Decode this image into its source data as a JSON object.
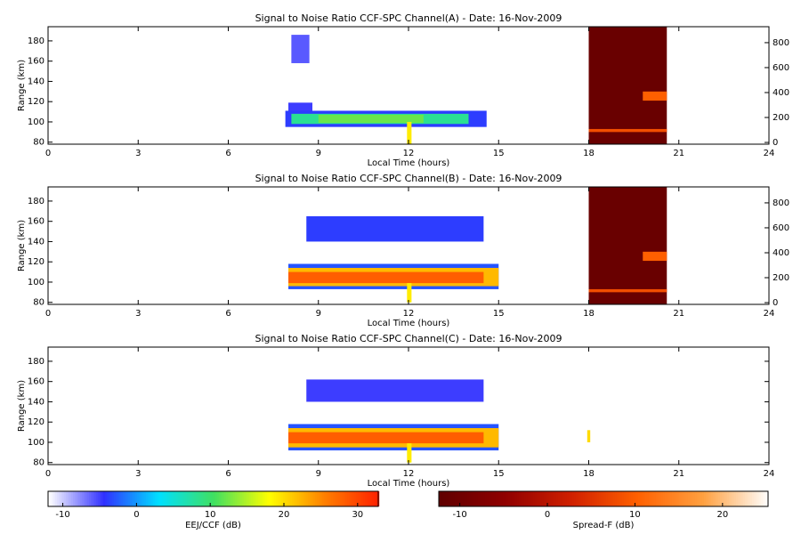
{
  "chart_data": [
    {
      "type": "heatmap",
      "title": "Signal to Noise Ratio CCF-SPC Channel(A) - Date: 16-Nov-2009",
      "x_label": "Local Time (hours)",
      "y_label": "Range (km)",
      "xlim": [
        0,
        24
      ],
      "xticks": [
        0,
        3,
        6,
        9,
        12,
        15,
        18,
        21,
        24
      ],
      "ylim": [
        78,
        194
      ],
      "yticks": [
        80,
        100,
        120,
        140,
        160,
        180
      ],
      "y2lim": [
        -14,
        928
      ],
      "y2ticks": [
        0,
        200,
        400,
        600,
        800
      ],
      "regions": [
        {
          "x": [
            8.1,
            8.7
          ],
          "y": [
            158,
            186
          ],
          "value": -6
        },
        {
          "x": [
            8.0,
            8.8
          ],
          "y": [
            108,
            119
          ],
          "value": -5
        },
        {
          "x": [
            7.9,
            14.6
          ],
          "y": [
            95,
            111
          ],
          "value": -4
        },
        {
          "x": [
            8.1,
            14.0
          ],
          "y": [
            98,
            108
          ],
          "value": 8
        },
        {
          "x": [
            9.0,
            12.5
          ],
          "y": [
            99,
            107
          ],
          "value": 12
        },
        {
          "x": [
            11.95,
            12.1
          ],
          "y": [
            78,
            100
          ],
          "value": 19
        }
      ],
      "spread_regions": [
        {
          "x": [
            18.0,
            20.6
          ],
          "y": [
            78,
            194
          ],
          "value": -11
        },
        {
          "x": [
            18.0,
            20.6
          ],
          "y": [
            90,
            93
          ],
          "value": 8
        },
        {
          "x": [
            19.8,
            20.6
          ],
          "y": [
            121,
            130
          ],
          "value": 10
        }
      ]
    },
    {
      "type": "heatmap",
      "title": "Signal to Noise Ratio CCF-SPC Channel(B) - Date: 16-Nov-2009",
      "x_label": "Local Time (hours)",
      "y_label": "Range (km)",
      "xlim": [
        0,
        24
      ],
      "xticks": [
        0,
        3,
        6,
        9,
        12,
        15,
        18,
        21,
        24
      ],
      "ylim": [
        78,
        194
      ],
      "yticks": [
        80,
        100,
        120,
        140,
        160,
        180
      ],
      "y2lim": [
        -14,
        928
      ],
      "y2ticks": [
        0,
        200,
        400,
        600,
        800
      ],
      "regions": [
        {
          "x": [
            8.6,
            14.5
          ],
          "y": [
            140,
            165
          ],
          "value": -4
        },
        {
          "x": [
            8.0,
            15.0
          ],
          "y": [
            93,
            118
          ],
          "value": -3
        },
        {
          "x": [
            8.0,
            15.0
          ],
          "y": [
            96,
            114
          ],
          "value": 22
        },
        {
          "x": [
            8.0,
            14.5
          ],
          "y": [
            99,
            110
          ],
          "value": 28
        },
        {
          "x": [
            11.95,
            12.1
          ],
          "y": [
            80,
            99
          ],
          "value": 19
        }
      ],
      "spread_regions": [
        {
          "x": [
            18.0,
            20.6
          ],
          "y": [
            78,
            194
          ],
          "value": -11
        },
        {
          "x": [
            18.0,
            20.6
          ],
          "y": [
            90,
            93
          ],
          "value": 8
        },
        {
          "x": [
            19.8,
            20.6
          ],
          "y": [
            121,
            130
          ],
          "value": 10
        }
      ]
    },
    {
      "type": "heatmap",
      "title": "Signal to Noise Ratio CCF-SPC Channel(C) - Date: 16-Nov-2009",
      "x_label": "Local Time (hours)",
      "y_label": "Range (km)",
      "xlim": [
        0,
        24
      ],
      "xticks": [
        0,
        3,
        6,
        9,
        12,
        15,
        18,
        21,
        24
      ],
      "ylim": [
        78,
        194
      ],
      "yticks": [
        80,
        100,
        120,
        140,
        160,
        180
      ],
      "regions": [
        {
          "x": [
            8.6,
            14.5
          ],
          "y": [
            140,
            162
          ],
          "value": -5
        },
        {
          "x": [
            8.0,
            15.0
          ],
          "y": [
            92,
            118
          ],
          "value": -3
        },
        {
          "x": [
            8.0,
            15.0
          ],
          "y": [
            95,
            114
          ],
          "value": 22
        },
        {
          "x": [
            8.0,
            14.5
          ],
          "y": [
            99,
            110
          ],
          "value": 28
        },
        {
          "x": [
            11.95,
            12.1
          ],
          "y": [
            80,
            99
          ],
          "value": 19
        },
        {
          "x": [
            17.95,
            18.05
          ],
          "y": [
            100,
            112
          ],
          "value": 20
        }
      ],
      "spread_regions": []
    },
    {
      "type": "colorbar",
      "label": "EEJ/CCF (dB)",
      "clim": [
        -12,
        32.8
      ],
      "ticks": [
        -10,
        0,
        10,
        20,
        30
      ],
      "colors": [
        "#ffffff",
        "#3030ff",
        "#00e0ff",
        "#40e060",
        "#ffff00",
        "#ff8000",
        "#ff2000"
      ]
    },
    {
      "type": "colorbar",
      "label": "Spread-F (dB)",
      "clim": [
        -12.4,
        25.2
      ],
      "ticks": [
        -10,
        0,
        10,
        20
      ],
      "colors": [
        "#600000",
        "#900000",
        "#d02000",
        "#ff6000",
        "#ffa040",
        "#ffffff"
      ]
    }
  ]
}
